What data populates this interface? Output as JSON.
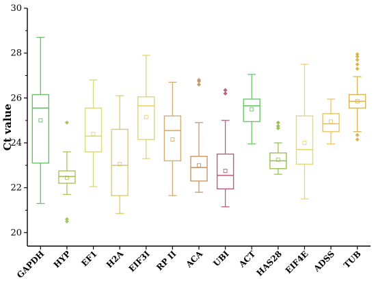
{
  "chart_data": {
    "type": "box",
    "title": "",
    "xlabel": "",
    "ylabel": "Ct value",
    "ylim": [
      19.4,
      30
    ],
    "yticks": [
      20,
      22,
      24,
      26,
      28,
      30
    ],
    "grid": false,
    "legend": "none",
    "categories": [
      "GAPDH",
      "HYP",
      "EF1",
      "H2A",
      "EIF3I",
      "RP II",
      "ACA",
      "UBI",
      "ACT",
      "HAS28",
      "EIF4E",
      "ADSS",
      "TUB"
    ],
    "colors": [
      "#6cbf6c",
      "#a8c45a",
      "#d9d97a",
      "#dccb70",
      "#e3d66a",
      "#d2ad72",
      "#c9986a",
      "#b8607a",
      "#6cc46c",
      "#9cc056",
      "#e6d86e",
      "#e8c468",
      "#dcb456"
    ],
    "boxes": [
      {
        "min": 21.3,
        "q1": 23.1,
        "median": 25.55,
        "q3": 26.15,
        "max": 28.7,
        "mean": 25.0,
        "outliers": []
      },
      {
        "min": 21.7,
        "q1": 22.2,
        "median": 22.5,
        "q3": 22.75,
        "max": 23.6,
        "mean": 22.45,
        "outliers": [
          24.9,
          20.6,
          20.5
        ]
      },
      {
        "min": 22.05,
        "q1": 23.6,
        "median": 24.3,
        "q3": 25.55,
        "max": 26.8,
        "mean": 24.4,
        "outliers": []
      },
      {
        "min": 20.85,
        "q1": 21.65,
        "median": 23.0,
        "q3": 24.6,
        "max": 26.1,
        "mean": 23.05,
        "outliers": []
      },
      {
        "min": 23.3,
        "q1": 24.15,
        "median": 25.65,
        "q3": 26.05,
        "max": 27.9,
        "mean": 25.15,
        "outliers": []
      },
      {
        "min": 21.65,
        "q1": 23.2,
        "median": 24.55,
        "q3": 25.2,
        "max": 26.7,
        "mean": 24.15,
        "outliers": []
      },
      {
        "min": 21.8,
        "q1": 22.3,
        "median": 22.9,
        "q3": 23.4,
        "max": 24.9,
        "mean": 23.0,
        "outliers": [
          26.8,
          26.75,
          26.6
        ]
      },
      {
        "min": 21.15,
        "q1": 21.95,
        "median": 22.55,
        "q3": 23.5,
        "max": 25.0,
        "mean": 22.75,
        "outliers": [
          26.35,
          26.2
        ]
      },
      {
        "min": 23.95,
        "q1": 24.95,
        "median": 25.65,
        "q3": 25.95,
        "max": 27.05,
        "mean": 25.5,
        "outliers": []
      },
      {
        "min": 22.6,
        "q1": 22.85,
        "median": 23.2,
        "q3": 23.55,
        "max": 24.0,
        "mean": 23.25,
        "outliers": [
          24.9,
          24.75,
          24.65
        ]
      },
      {
        "min": 21.5,
        "q1": 23.05,
        "median": 23.7,
        "q3": 25.2,
        "max": 27.5,
        "mean": 24.0,
        "outliers": []
      },
      {
        "min": 23.95,
        "q1": 24.5,
        "median": 24.85,
        "q3": 25.3,
        "max": 25.95,
        "mean": 24.95,
        "outliers": []
      },
      {
        "min": 24.5,
        "q1": 25.55,
        "median": 25.85,
        "q3": 26.15,
        "max": 26.95,
        "mean": 25.85,
        "outliers": [
          27.95,
          27.85,
          27.7,
          27.5,
          27.3,
          24.35,
          24.15
        ]
      }
    ]
  }
}
